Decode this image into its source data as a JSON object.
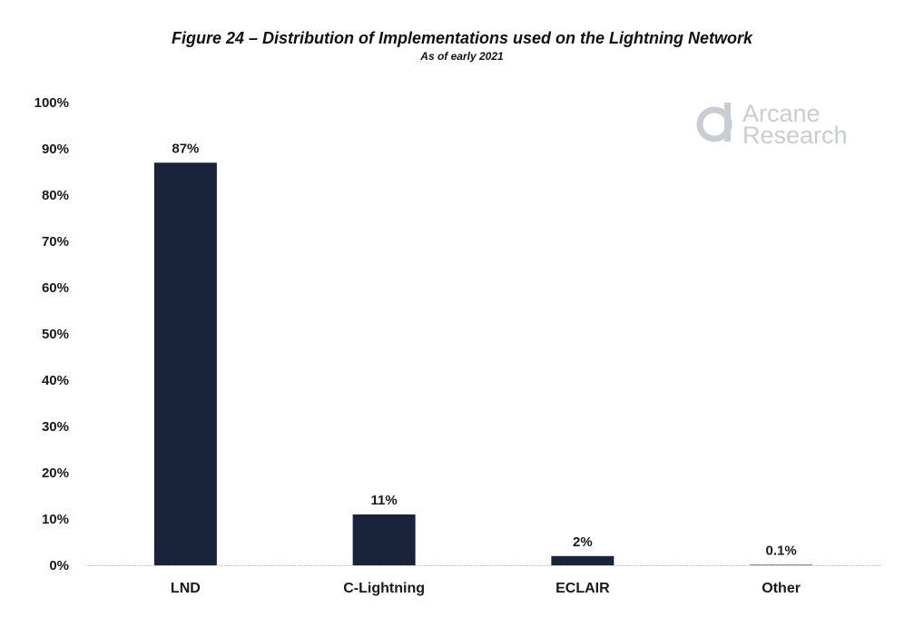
{
  "chart_data": {
    "type": "bar",
    "title": "Figure 24 – Distribution of Implementations used on the Lightning Network",
    "subtitle": "As of early 2021",
    "categories": [
      "LND",
      "C-Lightning",
      "ECLAIR",
      "Other"
    ],
    "values": [
      87,
      11,
      2,
      0.1
    ],
    "data_labels": [
      "87%",
      "11%",
      "2%",
      "0.1%"
    ],
    "ylim": [
      0,
      100
    ],
    "yticks": [
      0,
      10,
      20,
      30,
      40,
      50,
      60,
      70,
      80,
      90,
      100
    ],
    "ytick_labels": [
      "0%",
      "10%",
      "20%",
      "30%",
      "40%",
      "50%",
      "60%",
      "70%",
      "80%",
      "90%",
      "100%"
    ],
    "xlabel": "",
    "ylabel": "",
    "grid": false,
    "bar_color": "#19233a"
  },
  "watermark": {
    "line1": "Arcane",
    "line2": "Research",
    "color": "#c9cdd1"
  }
}
